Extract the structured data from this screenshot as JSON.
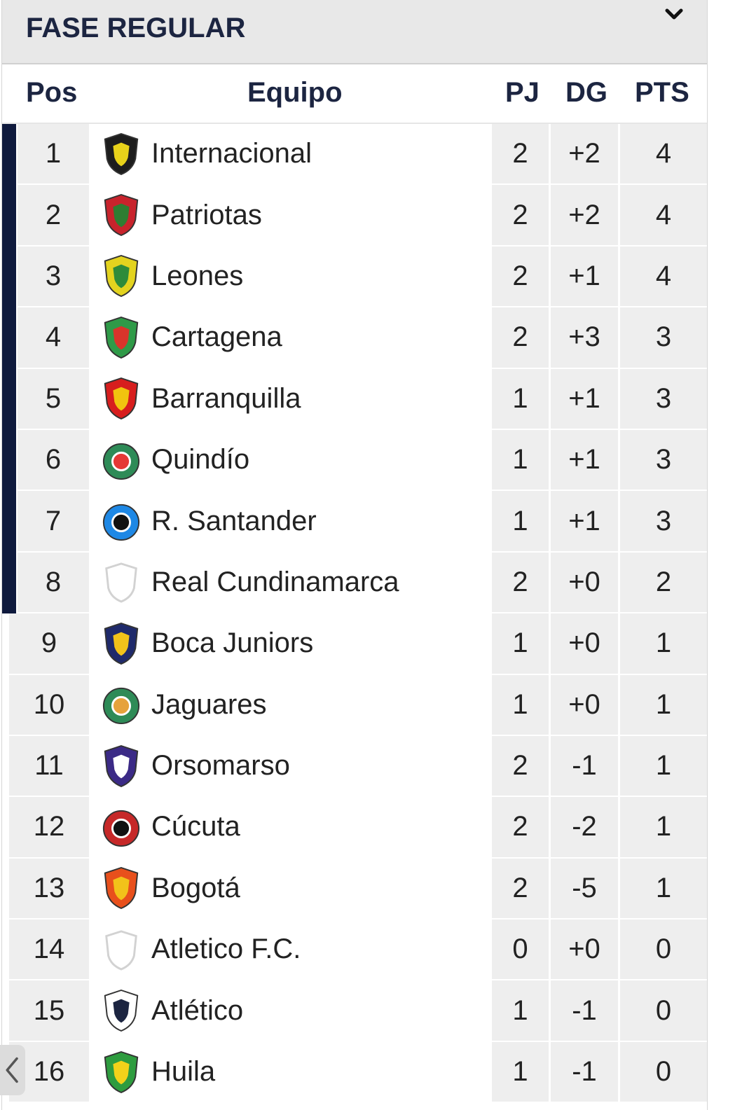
{
  "widget": {
    "title": "FASE REGULAR",
    "toggle_icon": "chevron-down-icon"
  },
  "columns": {
    "pos": "Pos",
    "team": "Equipo",
    "pj": "PJ",
    "dg": "DG",
    "pts": "PTS"
  },
  "qualification_color": "#0f1a3d",
  "rows": [
    {
      "pos": "1",
      "team": "Internacional",
      "pj": "2",
      "dg": "+2",
      "pts": "4",
      "crest": "internacional-crest-icon",
      "color": "#1d1d1d",
      "accent": "#e8d21a"
    },
    {
      "pos": "2",
      "team": "Patriotas",
      "pj": "2",
      "dg": "+2",
      "pts": "4",
      "crest": "patriotas-crest-icon",
      "color": "#c8232c",
      "accent": "#2e7d32"
    },
    {
      "pos": "3",
      "team": "Leones",
      "pj": "2",
      "dg": "+1",
      "pts": "4",
      "crest": "leones-crest-icon",
      "color": "#e3d31f",
      "accent": "#2e8b3a"
    },
    {
      "pos": "4",
      "team": "Cartagena",
      "pj": "2",
      "dg": "+3",
      "pts": "3",
      "crest": "cartagena-crest-icon",
      "color": "#2f9a48",
      "accent": "#d9342b"
    },
    {
      "pos": "5",
      "team": "Barranquilla",
      "pj": "1",
      "dg": "+1",
      "pts": "3",
      "crest": "barranquilla-crest-icon",
      "color": "#d71e1e",
      "accent": "#f1c40f"
    },
    {
      "pos": "6",
      "team": "Quindío",
      "pj": "1",
      "dg": "+1",
      "pts": "3",
      "crest": "quindio-crest-icon",
      "color": "#2e8b57",
      "accent": "#e53935"
    },
    {
      "pos": "7",
      "team": "R. Santander",
      "pj": "1",
      "dg": "+1",
      "pts": "3",
      "crest": "real-santander-crest-icon",
      "color": "#1e88e5",
      "accent": "#111111"
    },
    {
      "pos": "8",
      "team": "Real Cundinamarca",
      "pj": "2",
      "dg": "+0",
      "pts": "2",
      "crest": "default-shield-icon",
      "color": "#ffffff",
      "accent": "#cfcfcf"
    },
    {
      "pos": "9",
      "team": "Boca Juniors",
      "pj": "1",
      "dg": "+0",
      "pts": "1",
      "crest": "boca-juniors-crest-icon",
      "color": "#1f2a6b",
      "accent": "#f2c21a"
    },
    {
      "pos": "10",
      "team": "Jaguares",
      "pj": "1",
      "dg": "+0",
      "pts": "1",
      "crest": "jaguares-crest-icon",
      "color": "#2e8b57",
      "accent": "#e6a23c"
    },
    {
      "pos": "11",
      "team": "Orsomarso",
      "pj": "2",
      "dg": "-1",
      "pts": "1",
      "crest": "orsomarso-crest-icon",
      "color": "#3b2a86",
      "accent": "#ffffff"
    },
    {
      "pos": "12",
      "team": "Cúcuta",
      "pj": "2",
      "dg": "-2",
      "pts": "1",
      "crest": "cucuta-crest-icon",
      "color": "#c62828",
      "accent": "#111111"
    },
    {
      "pos": "13",
      "team": "Bogotá",
      "pj": "2",
      "dg": "-5",
      "pts": "1",
      "crest": "bogota-crest-icon",
      "color": "#e8501c",
      "accent": "#f2c21a"
    },
    {
      "pos": "14",
      "team": "Atletico F.C.",
      "pj": "0",
      "dg": "+0",
      "pts": "0",
      "crest": "default-shield-icon",
      "color": "#ffffff",
      "accent": "#cfcfcf"
    },
    {
      "pos": "15",
      "team": "Atlético",
      "pj": "1",
      "dg": "-1",
      "pts": "0",
      "crest": "atletico-crest-icon",
      "color": "#ffffff",
      "accent": "#1c2541"
    },
    {
      "pos": "16",
      "team": "Huila",
      "pj": "1",
      "dg": "-1",
      "pts": "0",
      "crest": "huila-crest-icon",
      "color": "#2e9c3f",
      "accent": "#f2d21a"
    }
  ],
  "nav": {
    "back_icon": "chevron-left-icon"
  }
}
